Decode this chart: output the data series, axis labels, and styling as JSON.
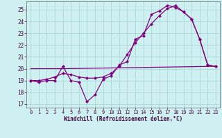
{
  "background_color": "#cff0f0",
  "grid_color": "#aad8d8",
  "line_color": "#800080",
  "xlim": [
    -0.5,
    23.5
  ],
  "ylim": [
    16.7,
    25.7
  ],
  "xticks": [
    0,
    1,
    2,
    3,
    4,
    5,
    6,
    7,
    8,
    9,
    10,
    11,
    12,
    13,
    14,
    15,
    16,
    17,
    18,
    19,
    20,
    21,
    22,
    23
  ],
  "yticks": [
    17,
    18,
    19,
    20,
    21,
    22,
    23,
    24,
    25
  ],
  "xlabel": "Windchill (Refroidissement éolien,°C)",
  "line1_x": [
    0,
    1,
    2,
    3,
    4,
    5,
    6,
    7,
    8,
    9,
    10,
    11,
    12,
    13,
    14,
    15,
    16,
    17,
    18,
    19,
    20,
    21,
    22,
    23
  ],
  "line1_y": [
    19.0,
    18.85,
    19.0,
    19.0,
    20.2,
    19.0,
    18.85,
    17.2,
    17.8,
    19.1,
    19.4,
    20.3,
    20.6,
    22.5,
    22.8,
    24.6,
    24.9,
    25.35,
    25.2,
    24.8,
    24.2,
    22.5,
    20.3,
    20.2
  ],
  "line2_x": [
    0,
    1,
    2,
    3,
    4,
    5,
    6,
    7,
    8,
    9,
    10,
    11,
    12,
    13,
    14,
    15,
    16,
    17,
    18,
    19,
    20,
    21,
    22,
    23
  ],
  "line2_y": [
    19.0,
    19.0,
    19.1,
    19.3,
    19.6,
    19.5,
    19.3,
    19.2,
    19.2,
    19.3,
    19.6,
    20.2,
    21.2,
    22.2,
    23.0,
    23.8,
    24.5,
    25.1,
    25.35,
    24.8,
    24.2,
    22.5,
    20.3,
    20.2
  ],
  "line3_x": [
    0,
    4,
    23
  ],
  "line3_y": [
    20.0,
    20.0,
    20.2
  ],
  "markersize": 2.5,
  "linewidth": 0.9
}
